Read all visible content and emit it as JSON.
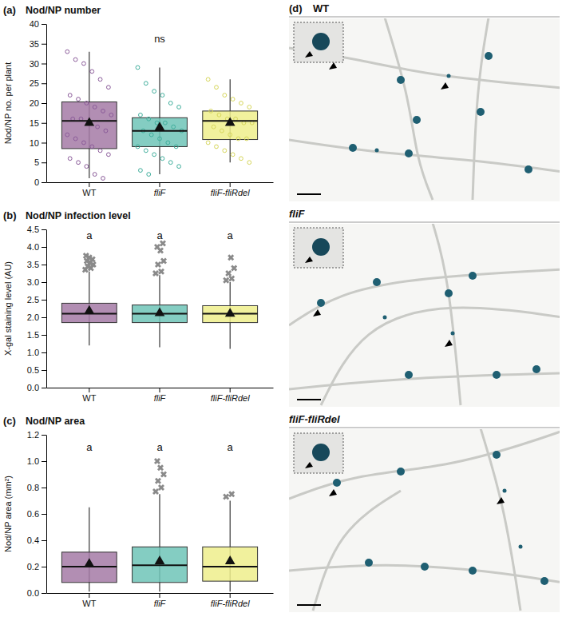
{
  "chart_data": [
    {
      "type": "box",
      "panel_label": "(a)",
      "title": "Nod/NP number",
      "y_label": "Nod/NP no. per plant",
      "categories": [
        "WT",
        "fliF",
        "fliF-fliRdel"
      ],
      "colors": [
        "#a57aa6",
        "#6fc4b7",
        "#eeee8c"
      ],
      "point_colors": [
        "#8a5a99",
        "#3fae9c",
        "#d6d65a"
      ],
      "ylim": [
        0,
        40
      ],
      "yticks": [
        0,
        5,
        10,
        15,
        20,
        25,
        30,
        35,
        40
      ],
      "annotations": [
        {
          "text": "ns",
          "x": "fliF",
          "y": 36
        }
      ],
      "boxes": [
        {
          "whisker_low": 1,
          "q1": 8.5,
          "median": 15.5,
          "q3": 20.3,
          "whisker_high": 33,
          "mean": 15,
          "points": [
            33,
            31,
            30,
            28,
            26,
            24,
            22,
            21,
            20,
            19,
            18,
            17,
            16,
            16,
            15,
            14,
            13,
            12,
            11,
            10,
            9,
            8,
            7,
            6,
            5,
            4,
            2,
            1
          ]
        },
        {
          "whisker_low": 2,
          "q1": 9,
          "median": 13,
          "q3": 16.3,
          "whisker_high": 29,
          "mean": 13.8,
          "points": [
            29,
            25,
            23,
            22,
            20,
            19,
            17,
            16,
            15,
            15,
            14,
            13,
            13,
            12,
            11,
            10,
            9,
            9,
            8,
            7,
            6,
            5,
            4,
            3,
            2
          ]
        },
        {
          "whisker_low": 5,
          "q1": 10.8,
          "median": 15.5,
          "q3": 18,
          "whisker_high": 26,
          "mean": 15,
          "points": [
            26,
            24,
            22,
            21,
            20,
            19,
            18,
            17,
            16,
            16,
            15,
            15,
            14,
            13,
            12,
            11,
            11,
            10,
            9,
            8,
            7,
            6,
            5
          ]
        }
      ]
    },
    {
      "type": "box",
      "panel_label": "(b)",
      "title": "Nod/NP infection level",
      "y_label": "X-gal staining level (AU)",
      "categories": [
        "WT",
        "fliF",
        "fliF-fliRdel"
      ],
      "colors": [
        "#a57aa6",
        "#6fc4b7",
        "#eeee8c"
      ],
      "point_colors": [
        "#8a5a99",
        "#3fae9c",
        "#d6d65a"
      ],
      "ylim": [
        0,
        4.5
      ],
      "yticks": [
        {
          "value": 0,
          "label": "0.0"
        },
        {
          "value": 0.5,
          "label": "0.5"
        },
        {
          "value": 1,
          "label": "1.0"
        },
        {
          "value": 1.5,
          "label": "1.5"
        },
        {
          "value": 2,
          "label": "2.0"
        },
        {
          "value": 2.5,
          "label": "2.5"
        },
        {
          "value": 3,
          "label": "3.0"
        },
        {
          "value": 3.5,
          "label": "3.5"
        },
        {
          "value": 4,
          "label": "4.0"
        },
        {
          "value": 4.5,
          "label": "4.5"
        }
      ],
      "annotations": [
        {
          "text": "a",
          "x": "WT",
          "y": 4.3
        },
        {
          "text": "a",
          "x": "fliF",
          "y": 4.3
        },
        {
          "text": "a",
          "x": "fliF-fliRdel",
          "y": 4.3
        }
      ],
      "boxes": [
        {
          "whisker_low": 1.2,
          "q1": 1.85,
          "median": 2.1,
          "q3": 2.4,
          "whisker_high": 3.3,
          "mean": 2.18,
          "outliers": [
            3.35,
            3.4,
            3.45,
            3.5,
            3.55,
            3.6,
            3.65,
            3.7,
            3.75
          ]
        },
        {
          "whisker_low": 1.15,
          "q1": 1.85,
          "median": 2.1,
          "q3": 2.35,
          "whisker_high": 3.2,
          "mean": 2.12,
          "outliers": [
            3.25,
            3.3,
            3.5,
            3.6,
            3.9,
            4.0,
            4.1
          ]
        },
        {
          "whisker_low": 1.1,
          "q1": 1.85,
          "median": 2.1,
          "q3": 2.33,
          "whisker_high": 3.0,
          "mean": 2.1,
          "outliers": [
            3.05,
            3.1,
            3.25,
            3.4,
            3.7
          ]
        }
      ]
    },
    {
      "type": "box",
      "panel_label": "(c)",
      "title": "Nod/NP area",
      "y_label": "Nod/NP area (mm²)",
      "categories": [
        "WT",
        "fliF",
        "fliF-fliRdel"
      ],
      "colors": [
        "#a57aa6",
        "#6fc4b7",
        "#eeee8c"
      ],
      "point_colors": [
        "#8a5a99",
        "#3fae9c",
        "#d6d65a"
      ],
      "ylim": [
        0,
        1.2
      ],
      "yticks": [
        {
          "value": 0,
          "label": "0.0"
        },
        {
          "value": 0.2,
          "label": "0.2"
        },
        {
          "value": 0.4,
          "label": "0.4"
        },
        {
          "value": 0.6,
          "label": "0.6"
        },
        {
          "value": 0.8,
          "label": "0.8"
        },
        {
          "value": 1,
          "label": "1.0"
        },
        {
          "value": 1.2,
          "label": "1.2"
        }
      ],
      "annotations": [
        {
          "text": "a",
          "x": "WT",
          "y": 1.1
        },
        {
          "text": "a",
          "x": "fliF",
          "y": 1.1
        },
        {
          "text": "a",
          "x": "fliF-fliRdel",
          "y": 1.1
        }
      ],
      "boxes": [
        {
          "whisker_low": 0.01,
          "q1": 0.08,
          "median": 0.2,
          "q3": 0.31,
          "whisker_high": 0.65,
          "mean": 0.22,
          "outliers": []
        },
        {
          "whisker_low": 0.01,
          "q1": 0.08,
          "median": 0.21,
          "q3": 0.35,
          "whisker_high": 0.75,
          "mean": 0.24,
          "outliers": [
            0.77,
            0.8,
            0.85,
            0.9,
            0.95,
            1.0
          ]
        },
        {
          "whisker_low": 0.01,
          "q1": 0.09,
          "median": 0.2,
          "q3": 0.35,
          "whisker_high": 0.7,
          "mean": 0.24,
          "outliers": [
            0.73,
            0.75
          ]
        }
      ]
    }
  ],
  "image_panel": {
    "panel_label": "(d)",
    "panels": [
      "WT",
      "fliF",
      "fliF-fliRdel"
    ]
  }
}
